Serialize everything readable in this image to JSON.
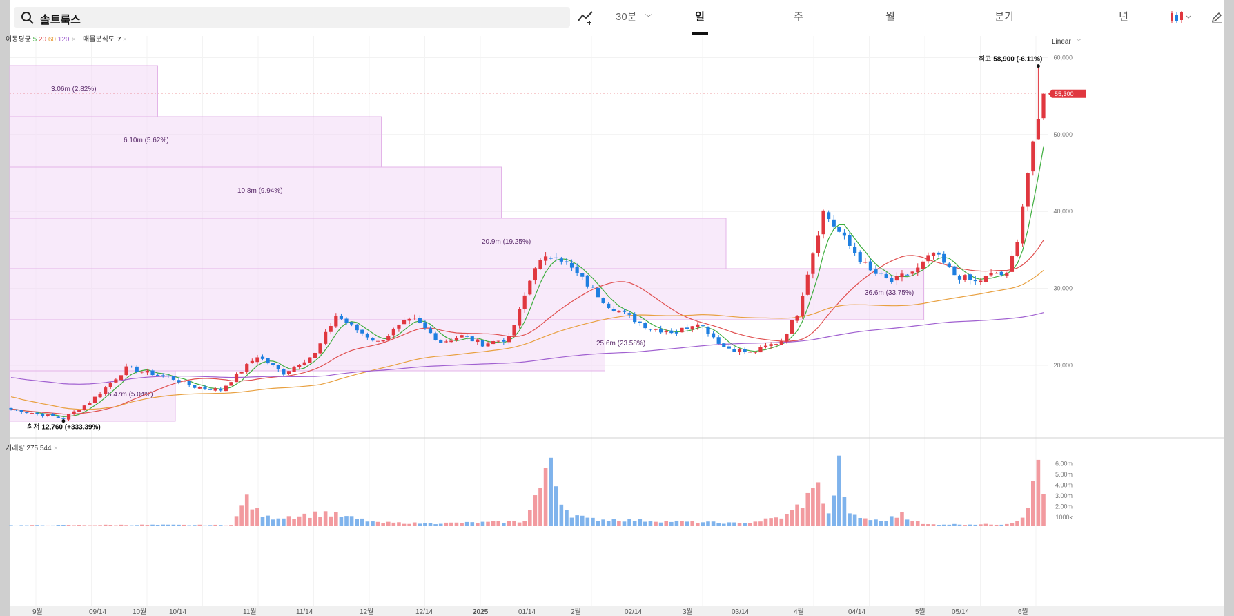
{
  "search": {
    "value": "솔트룩스"
  },
  "toolbar": {
    "interval": "30분",
    "tabs": [
      "일",
      "주",
      "월",
      "분기",
      "년"
    ],
    "active_tab": "일"
  },
  "indicators": {
    "ma_label": "이동평균",
    "ma_periods": [
      {
        "label": "5",
        "color": "#3fae3f"
      },
      {
        "label": "20",
        "color": "#e05050"
      },
      {
        "label": "60",
        "color": "#e8a040"
      },
      {
        "label": "120",
        "color": "#a060d0"
      }
    ],
    "profile_label": "매물분석도",
    "profile_value": "7"
  },
  "volume_label": "거래량 275,544",
  "scale_label": "Linear",
  "max_label": {
    "prefix": "최고",
    "value": "58,900 (-6.11%)"
  },
  "min_label": {
    "prefix": "최저",
    "value": "12,760 (+333.39%)"
  },
  "current_price": "55,300",
  "colors": {
    "up": "#e0373f",
    "down": "#1e7fe0",
    "up_vol": "#f29a9f",
    "down_vol": "#7fb3ec",
    "profile": "#f2d8f5",
    "profile_border": "#e3b4e8"
  },
  "chart_data": {
    "type": "candlestick",
    "y_axis": {
      "ticks": [
        20000,
        30000,
        40000,
        50000,
        60000
      ],
      "tick_labels": [
        "20,000",
        "30,000",
        "40,000",
        "50,000",
        "60,000"
      ]
    },
    "volume_axis": {
      "ticks": [
        "1000k",
        "2.00m",
        "3.00m",
        "4.00m",
        "5.00m",
        "6.00m"
      ]
    },
    "x_labels": [
      "9월",
      "09/14",
      "10월",
      "10/14",
      "11월",
      "11/14",
      "12월",
      "12/14",
      "2025",
      "01/14",
      "2월",
      "02/14",
      "3월",
      "03/14",
      "4월",
      "04/14",
      "5월",
      "05/14",
      "6월"
    ],
    "volume_profile": [
      {
        "label": "3.06m (2.82%)"
      },
      {
        "label": "6.10m (5.62%)"
      },
      {
        "label": "10.8m (9.94%)"
      },
      {
        "label": "20.9m (19.25%)"
      },
      {
        "label": "36.6m (33.75%)"
      },
      {
        "label": "25.6m (23.58%)"
      },
      {
        "label": "5.47m (5.04%)"
      }
    ],
    "close_anchors": [
      [
        0,
        14300
      ],
      [
        10,
        13100
      ],
      [
        15,
        15200
      ],
      [
        22,
        19600
      ],
      [
        30,
        18500
      ],
      [
        35,
        17200
      ],
      [
        40,
        16800
      ],
      [
        47,
        21200
      ],
      [
        52,
        19000
      ],
      [
        58,
        21500
      ],
      [
        62,
        26500
      ],
      [
        66,
        24600
      ],
      [
        70,
        23000
      ],
      [
        75,
        25500
      ],
      [
        77,
        25900
      ],
      [
        82,
        23000
      ],
      [
        86,
        23800
      ],
      [
        90,
        22800
      ],
      [
        95,
        23500
      ],
      [
        97,
        27000
      ],
      [
        100,
        33000
      ],
      [
        104,
        34500
      ],
      [
        110,
        30500
      ],
      [
        114,
        27800
      ],
      [
        118,
        26300
      ],
      [
        122,
        24800
      ],
      [
        127,
        24300
      ],
      [
        131,
        25700
      ],
      [
        136,
        22400
      ],
      [
        141,
        21600
      ],
      [
        147,
        23200
      ],
      [
        150,
        26800
      ],
      [
        155,
        40000
      ],
      [
        160,
        35500
      ],
      [
        164,
        32200
      ],
      [
        168,
        30900
      ],
      [
        173,
        32500
      ],
      [
        176,
        34600
      ],
      [
        180,
        31800
      ],
      [
        184,
        30800
      ],
      [
        188,
        32000
      ],
      [
        190,
        31600
      ],
      [
        192,
        36500
      ],
      [
        194,
        45000
      ],
      [
        196,
        51800
      ],
      [
        197,
        55300
      ]
    ],
    "volume_anchors": [
      [
        0,
        0.1
      ],
      [
        25,
        0.15
      ],
      [
        42,
        0.12
      ],
      [
        45,
        2.95
      ],
      [
        48,
        0.9
      ],
      [
        60,
        1.4
      ],
      [
        70,
        0.4
      ],
      [
        80,
        0.3
      ],
      [
        98,
        0.5
      ],
      [
        100,
        2.9
      ],
      [
        103,
        6.4
      ],
      [
        106,
        1.5
      ],
      [
        110,
        0.8
      ],
      [
        140,
        0.3
      ],
      [
        148,
        1.1
      ],
      [
        152,
        3.1
      ],
      [
        154,
        4.1
      ],
      [
        156,
        1.2
      ],
      [
        158,
        6.6
      ],
      [
        160,
        1.2
      ],
      [
        166,
        0.5
      ],
      [
        170,
        1.3
      ],
      [
        174,
        0.2
      ],
      [
        190,
        0.2
      ],
      [
        193,
        0.8
      ],
      [
        195,
        4.2
      ],
      [
        196,
        6.2
      ],
      [
        197,
        3.0
      ]
    ],
    "max": {
      "value": 58900
    },
    "min": {
      "value": 12760
    },
    "last": {
      "value": 55300
    }
  }
}
